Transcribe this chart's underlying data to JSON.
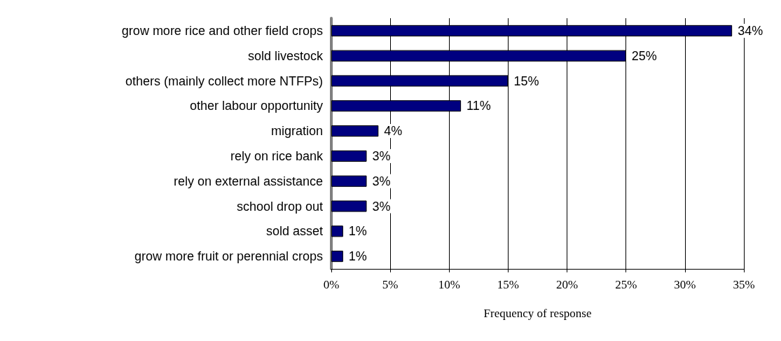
{
  "chart_data": {
    "type": "bar",
    "orientation": "horizontal",
    "xlabel": "Frequency of response",
    "categories": [
      "grow more rice and other field crops",
      "sold livestock",
      "others (mainly collect more NTFPs)",
      "other labour opportunity",
      "migration",
      "rely on rice bank",
      "rely on external assistance",
      "school drop out",
      "sold asset",
      "grow more fruit or perennial crops"
    ],
    "values": [
      34,
      25,
      15,
      11,
      4,
      3,
      3,
      3,
      1,
      1
    ],
    "value_labels": [
      "34%",
      "25%",
      "15%",
      "11%",
      "4%",
      "3%",
      "3%",
      "3%",
      "1%",
      "1%"
    ],
    "color": "#000080",
    "xlim": [
      0,
      35
    ],
    "xticks": [
      {
        "value": 0,
        "label": "0%"
      },
      {
        "value": 5,
        "label": "5%"
      },
      {
        "value": 10,
        "label": "10%"
      },
      {
        "value": 15,
        "label": "15%"
      },
      {
        "value": 20,
        "label": "20%"
      },
      {
        "value": 25,
        "label": "25%"
      },
      {
        "value": 30,
        "label": "30%"
      },
      {
        "value": 35,
        "label": "35%"
      }
    ],
    "grid": "x"
  }
}
